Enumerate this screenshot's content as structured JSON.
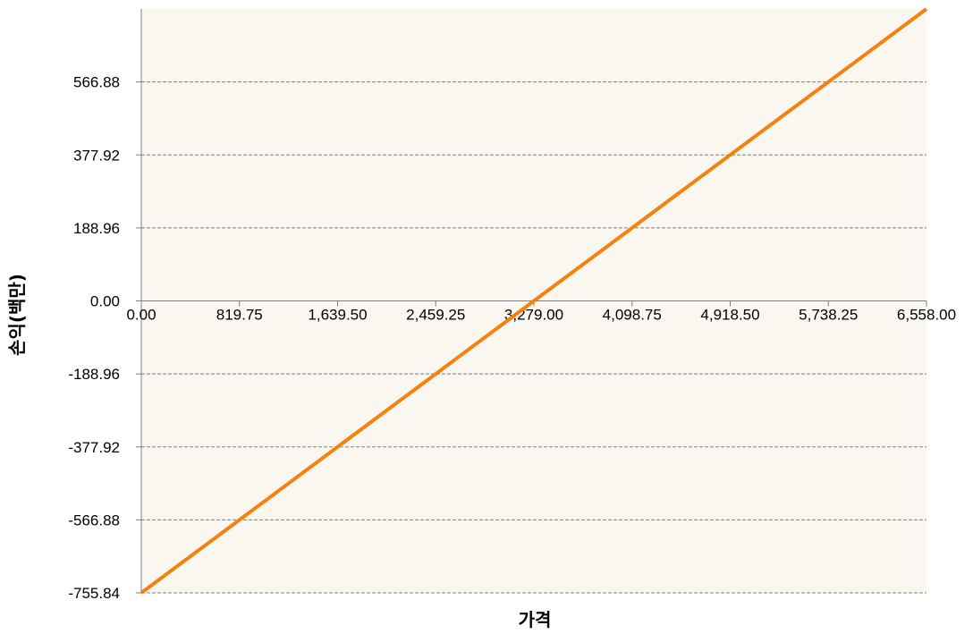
{
  "chart_data": {
    "type": "line",
    "title": "",
    "xlabel": "가격",
    "ylabel": "손익(백만)",
    "xlim": [
      0,
      6558
    ],
    "ylim": [
      -755.84,
      755.84
    ],
    "x_ticks": [
      "0.00",
      "819.75",
      "1,639.50",
      "2,459.25",
      "3,279.00",
      "4,098.75",
      "4,918.50",
      "5,738.25",
      "6,558.00"
    ],
    "y_ticks": [
      "566.88",
      "377.92",
      "188.96",
      "0.00",
      "-188.96",
      "-377.92",
      "-566.88",
      "-755.84"
    ],
    "grid": "horizontal-dashed",
    "legend": "none",
    "series": [
      {
        "x": [
          0,
          3279,
          6558
        ],
        "values": [
          -755.84,
          0,
          755.84
        ],
        "color": "#f5820f"
      }
    ]
  },
  "colors": {
    "plot_background": "#f9f7ef",
    "gridline": "#808080",
    "axis": "#808080",
    "line": "#f5820f"
  }
}
